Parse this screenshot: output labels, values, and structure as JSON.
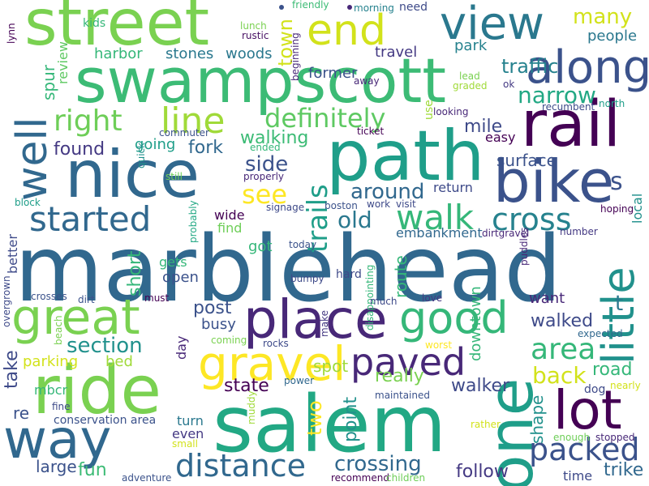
{
  "words": [
    {
      "text": "marblehead",
      "color": "#31688e"
    },
    {
      "text": "swampscott",
      "color": "#3cbb75"
    },
    {
      "text": "salem",
      "color": "#22a884"
    },
    {
      "text": "path",
      "color": "#1f9e89"
    },
    {
      "text": "street",
      "color": "#7ad151"
    },
    {
      "text": "nice",
      "color": "#31688e"
    },
    {
      "text": "ride",
      "color": "#7ad151"
    },
    {
      "text": "bike",
      "color": "#3b528b"
    },
    {
      "text": "rail",
      "color": "#440154"
    },
    {
      "text": "end",
      "color": "#d2e21b"
    },
    {
      "text": "view",
      "color": "#2a788e"
    },
    {
      "text": "place",
      "color": "#482878"
    },
    {
      "text": "way",
      "color": "#31688e"
    },
    {
      "text": "along",
      "color": "#3b528b"
    },
    {
      "text": "well",
      "color": "#31688e"
    },
    {
      "text": "great",
      "color": "#7ad151"
    },
    {
      "text": "gravel",
      "color": "#fde725"
    },
    {
      "text": "good",
      "color": "#35b779"
    },
    {
      "text": "one",
      "color": "#1f9e89"
    },
    {
      "text": "lot",
      "color": "#440154"
    },
    {
      "text": "little",
      "color": "#21918c"
    },
    {
      "text": "paved",
      "color": "#482878"
    },
    {
      "text": "started",
      "color": "#31688e"
    },
    {
      "text": "walk",
      "color": "#35b779"
    },
    {
      "text": "cross",
      "color": "#26828e"
    },
    {
      "text": "distance",
      "color": "#31688e"
    },
    {
      "text": "packed",
      "color": "#3b528b"
    },
    {
      "text": "line",
      "color": "#a0da39"
    },
    {
      "text": "right",
      "color": "#6ece58"
    },
    {
      "text": "definitely",
      "color": "#5ec962"
    },
    {
      "text": "trails",
      "color": "#1f9e89"
    },
    {
      "text": "see",
      "color": "#fde725"
    },
    {
      "text": "around",
      "color": "#31688e"
    },
    {
      "text": "area",
      "color": "#35b779"
    },
    {
      "text": "back",
      "color": "#d2e21b"
    },
    {
      "text": "many",
      "color": "#d2e21b"
    },
    {
      "text": "narrow",
      "color": "#22a884"
    },
    {
      "text": "traffic",
      "color": "#26828e"
    },
    {
      "text": "town",
      "color": "#d2e21b"
    },
    {
      "text": "side",
      "color": "#3b528b"
    },
    {
      "text": "fork",
      "color": "#31688e"
    },
    {
      "text": "mile",
      "color": "#3e4a89"
    },
    {
      "text": "walking",
      "color": "#3cbb75"
    },
    {
      "text": "found",
      "color": "#443983"
    },
    {
      "text": "going",
      "color": "#1f9e89"
    },
    {
      "text": "s",
      "color": "#3b528b"
    },
    {
      "text": "surface",
      "color": "#3b528b"
    },
    {
      "text": "easy",
      "color": "#440154"
    },
    {
      "text": "people",
      "color": "#2a788e"
    },
    {
      "text": "park",
      "color": "#26828e"
    },
    {
      "text": "travel",
      "color": "#443983"
    },
    {
      "text": "former",
      "color": "#3b528b"
    },
    {
      "text": "harbor",
      "color": "#35b779"
    },
    {
      "text": "stones",
      "color": "#2a788e"
    },
    {
      "text": "woods",
      "color": "#2a788e"
    },
    {
      "text": "review",
      "color": "#5ec962"
    },
    {
      "text": "spur",
      "color": "#35b779"
    },
    {
      "text": "kids",
      "color": "#35b779"
    },
    {
      "text": "lunch",
      "color": "#7ad151"
    },
    {
      "text": "rustic",
      "color": "#471063"
    },
    {
      "text": "friendly",
      "color": "#3cbb75"
    },
    {
      "text": "morning",
      "color": "#26828e"
    },
    {
      "text": "need",
      "color": "#3e4a89"
    },
    {
      "text": "beginning",
      "color": "#482878"
    },
    {
      "text": "lynn",
      "color": "#440154"
    },
    {
      "text": "lead",
      "color": "#7ad151"
    },
    {
      "text": "graded",
      "color": "#a0da39"
    },
    {
      "text": "away",
      "color": "#482878"
    },
    {
      "text": "ok",
      "color": "#443983"
    },
    {
      "text": "looking",
      "color": "#482878"
    },
    {
      "text": "use",
      "color": "#a0da39"
    },
    {
      "text": "recumbent",
      "color": "#3e4a89"
    },
    {
      "text": "north",
      "color": "#1f9e89"
    },
    {
      "text": "commuter",
      "color": "#3b528b"
    },
    {
      "text": "ticket",
      "color": "#440154"
    },
    {
      "text": "ended",
      "color": "#35b779"
    },
    {
      "text": "quick",
      "color": "#21918c"
    },
    {
      "text": "still",
      "color": "#6ece58"
    },
    {
      "text": "properly",
      "color": "#482878"
    },
    {
      "text": "signage",
      "color": "#3e4a89"
    },
    {
      "text": "boston",
      "color": "#3b528b"
    },
    {
      "text": "work",
      "color": "#3e4a89"
    },
    {
      "text": "visit",
      "color": "#3e4a89"
    },
    {
      "text": "hoping",
      "color": "#440154"
    },
    {
      "text": "local",
      "color": "#21918c"
    },
    {
      "text": "block",
      "color": "#1f9e89"
    },
    {
      "text": "probably",
      "color": "#22a884"
    },
    {
      "text": "better",
      "color": "#3e4a89"
    },
    {
      "text": "wide",
      "color": "#440154"
    },
    {
      "text": "find",
      "color": "#6ece58"
    },
    {
      "text": "return",
      "color": "#3e4a89"
    },
    {
      "text": "old",
      "color": "#2a788e"
    },
    {
      "text": "embankment",
      "color": "#31688e"
    },
    {
      "text": "dirtgravel",
      "color": "#482878"
    },
    {
      "text": "number",
      "color": "#443983"
    },
    {
      "text": "puddles",
      "color": "#482878"
    },
    {
      "text": "got",
      "color": "#35b779"
    },
    {
      "text": "today",
      "color": "#3b528b"
    },
    {
      "text": "gets",
      "color": "#35b779"
    },
    {
      "text": "short",
      "color": "#35b779"
    },
    {
      "text": "open",
      "color": "#3b528b"
    },
    {
      "text": "disappointing",
      "color": "#35b779"
    },
    {
      "text": "hard",
      "color": "#3e4a89"
    },
    {
      "text": "bumpy",
      "color": "#3e4a89"
    },
    {
      "text": "route",
      "color": "#35b779"
    },
    {
      "text": "overgrown",
      "color": "#3e4a89"
    },
    {
      "text": "crosses",
      "color": "#3b528b"
    },
    {
      "text": "dirt",
      "color": "#3b528b"
    },
    {
      "text": "must",
      "color": "#440154"
    },
    {
      "text": "much",
      "color": "#3e4a89"
    },
    {
      "text": "love",
      "color": "#443983"
    },
    {
      "text": "want",
      "color": "#482878"
    },
    {
      "text": "t",
      "color": "#2a788e"
    },
    {
      "text": "post",
      "color": "#3b528b"
    },
    {
      "text": "busy",
      "color": "#3b528b"
    },
    {
      "text": "walked",
      "color": "#3e4a89"
    },
    {
      "text": "beach",
      "color": "#7ad151"
    },
    {
      "text": "coming",
      "color": "#7ad151"
    },
    {
      "text": "make",
      "color": "#443983"
    },
    {
      "text": "worst",
      "color": "#fde725"
    },
    {
      "text": "expected",
      "color": "#31688e"
    },
    {
      "text": "section",
      "color": "#21918c"
    },
    {
      "text": "take",
      "color": "#3e4a89"
    },
    {
      "text": "day",
      "color": "#482878"
    },
    {
      "text": "rocks",
      "color": "#3e4a89"
    },
    {
      "text": "downtown",
      "color": "#35b779"
    },
    {
      "text": "really",
      "color": "#7ad151"
    },
    {
      "text": "road",
      "color": "#35b779"
    },
    {
      "text": "parking",
      "color": "#d2e21b"
    },
    {
      "text": "bed",
      "color": "#a0da39"
    },
    {
      "text": "spot",
      "color": "#a0da39"
    },
    {
      "text": "state",
      "color": "#440154"
    },
    {
      "text": "walker",
      "color": "#3e4a89"
    },
    {
      "text": "dog",
      "color": "#3e4a89"
    },
    {
      "text": "nearly",
      "color": "#d2e21b"
    },
    {
      "text": "power",
      "color": "#31688e"
    },
    {
      "text": "mbcr",
      "color": "#35b779"
    },
    {
      "text": "fine",
      "color": "#3e4a89"
    },
    {
      "text": "re",
      "color": "#3b528b"
    },
    {
      "text": "two",
      "color": "#fde725"
    },
    {
      "text": "point",
      "color": "#21918c"
    },
    {
      "text": "maintained",
      "color": "#3b528b"
    },
    {
      "text": "muddy",
      "color": "#a0da39"
    },
    {
      "text": "shape",
      "color": "#21918c"
    },
    {
      "text": "conservation area",
      "color": "#3b528b"
    },
    {
      "text": "turn",
      "color": "#2a788e"
    },
    {
      "text": "even",
      "color": "#443983"
    },
    {
      "text": "small",
      "color": "#d2e21b"
    },
    {
      "text": "rather",
      "color": "#d2e21b"
    },
    {
      "text": "enough",
      "color": "#6ece58"
    },
    {
      "text": "stopped",
      "color": "#482878"
    },
    {
      "text": "large",
      "color": "#3b528b"
    },
    {
      "text": "fun",
      "color": "#3cbb75"
    },
    {
      "text": "crossing",
      "color": "#31688e"
    },
    {
      "text": "follow",
      "color": "#443983"
    },
    {
      "text": "time",
      "color": "#3e4a89"
    },
    {
      "text": "trike",
      "color": "#31688e"
    },
    {
      "text": "adventure",
      "color": "#3b528b"
    },
    {
      "text": "recommend",
      "color": "#440154"
    },
    {
      "text": "children",
      "color": "#6ece58"
    }
  ]
}
